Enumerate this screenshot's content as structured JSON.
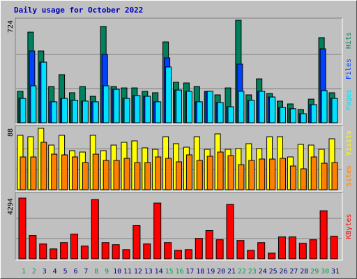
{
  "chart_data": [
    {
      "type": "bar",
      "title": "Daily usage for October 2022",
      "ylim": [
        0,
        724
      ],
      "yticks": [
        724
      ],
      "series": [
        {
          "name": "Hits",
          "color": "#00805c",
          "values": [
            222,
            640,
            507,
            256,
            340,
            212,
            256,
            187,
            680,
            256,
            246,
            246,
            222,
            212,
            571,
            286,
            281,
            256,
            222,
            197,
            246,
            724,
            197,
            310,
            207,
            153,
            133,
            94,
            167,
            601,
            212
          ]
        },
        {
          "name": "Files",
          "color": "#0040ff",
          "values": [
            172,
            507,
            428,
            148,
            172,
            158,
            153,
            148,
            483,
            236,
            172,
            192,
            187,
            148,
            458,
            231,
            222,
            148,
            222,
            143,
            113,
            414,
            158,
            222,
            182,
            108,
            99,
            64,
            128,
            522,
            172
          ]
        },
        {
          "name": "Pages",
          "color": "#00e0ff",
          "values": [
            172,
            261,
            428,
            148,
            172,
            158,
            153,
            148,
            261,
            236,
            172,
            192,
            187,
            148,
            394,
            231,
            222,
            148,
            222,
            143,
            113,
            222,
            158,
            222,
            182,
            108,
            99,
            64,
            128,
            227,
            172
          ]
        }
      ]
    },
    {
      "type": "bar",
      "ylim": [
        0,
        88
      ],
      "yticks": [
        88
      ],
      "series": [
        {
          "name": "Visits",
          "color": "#ffff00",
          "values": [
            78,
            76,
            88,
            64,
            78,
            56,
            54,
            78,
            56,
            64,
            68,
            70,
            60,
            58,
            76,
            66,
            61,
            76,
            58,
            80,
            58,
            59,
            66,
            59,
            76,
            76,
            47,
            65,
            64,
            58,
            73
          ]
        },
        {
          "name": "Sites",
          "color": "#ff8000",
          "values": [
            47,
            47,
            68,
            51,
            50,
            47,
            39,
            51,
            42,
            42,
            45,
            39,
            39,
            47,
            45,
            40,
            50,
            42,
            48,
            54,
            49,
            36,
            42,
            44,
            44,
            45,
            34,
            30,
            47,
            38,
            39
          ]
        }
      ]
    },
    {
      "type": "bar",
      "ylim": [
        0,
        4294
      ],
      "yticks": [
        4294
      ],
      "categories": [
        "1",
        "2",
        "3",
        "4",
        "5",
        "6",
        "7",
        "8",
        "9",
        "10",
        "11",
        "12",
        "13",
        "14",
        "15",
        "16",
        "17",
        "18",
        "19",
        "20",
        "21",
        "22",
        "23",
        "24",
        "25",
        "26",
        "27",
        "28",
        "29",
        "30",
        "31"
      ],
      "category_colors": [
        "#00a050",
        "#00a050",
        "#000080",
        "#000080",
        "#000080",
        "#000080",
        "#000080",
        "#00a050",
        "#00a050",
        "#000080",
        "#000080",
        "#000080",
        "#000080",
        "#000080",
        "#00a050",
        "#00a050",
        "#000080",
        "#000080",
        "#000080",
        "#000080",
        "#000080",
        "#00a050",
        "#00a050",
        "#000080",
        "#000080",
        "#000080",
        "#000080",
        "#000080",
        "#00a050",
        "#00a050",
        "#000080"
      ],
      "series": [
        {
          "name": "KBytes",
          "color": "#ff0000",
          "values": [
            4294,
            1648,
            1049,
            699,
            1148,
            1748,
            899,
            4194,
            1148,
            999,
            649,
            2347,
            1049,
            3944,
            1148,
            599,
            649,
            1448,
            1997,
            1348,
            3845,
            1298,
            599,
            1148,
            400,
            1548,
            1548,
            1099,
            1348,
            3400,
            1598
          ]
        }
      ]
    }
  ]
}
